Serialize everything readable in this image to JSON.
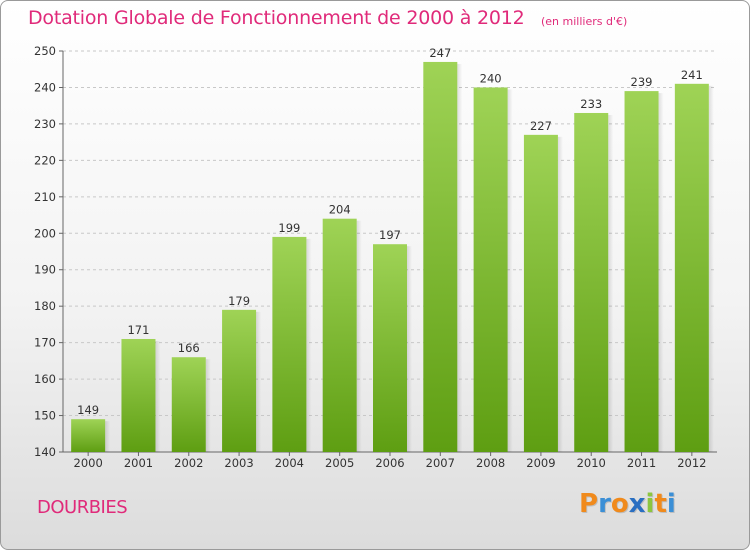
{
  "header": {
    "title": "Dotation Globale de Fonctionnement de 2000 à 2012",
    "subtitle": "(en milliers d'€)"
  },
  "footer": {
    "commune": "DOURBIES",
    "logo_letters": [
      "P",
      "r",
      "o",
      "x",
      "i",
      "t",
      "i"
    ],
    "logo_colors": [
      "#f08a1c",
      "#3b8fd6",
      "#f08a1c",
      "#2a6fc2",
      "#8cc63f",
      "#f08a1c",
      "#3b8fd6"
    ]
  },
  "colors": {
    "bar_top": "#9fd356",
    "bar_bottom": "#5e9e12",
    "accent": "#e02a7a",
    "grid": "#c8c8c8"
  },
  "chart_data": {
    "type": "bar",
    "categories": [
      "2000",
      "2001",
      "2002",
      "2003",
      "2004",
      "2005",
      "2006",
      "2007",
      "2008",
      "2009",
      "2010",
      "2011",
      "2012"
    ],
    "values": [
      149,
      171,
      166,
      179,
      199,
      204,
      197,
      247,
      240,
      227,
      233,
      239,
      241
    ],
    "ylim": [
      140,
      250
    ],
    "yticks": [
      140,
      150,
      160,
      170,
      180,
      190,
      200,
      210,
      220,
      230,
      240,
      250
    ],
    "grid": true,
    "data_labels": true
  }
}
